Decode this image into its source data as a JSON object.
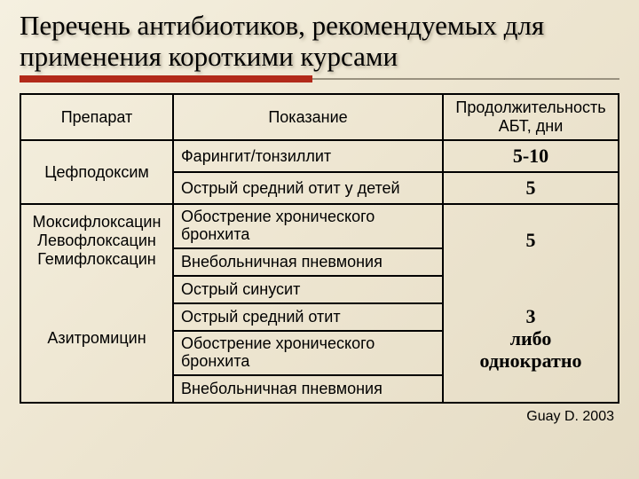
{
  "title": "Перечень антибиотиков, рекомендуемых для применения короткими курсами",
  "columns": {
    "drug": "Препарат",
    "indication": "Показание",
    "duration": "Продолжительность АБТ, дни"
  },
  "rows": {
    "r1_drug": "Цефподоксим",
    "r1a_ind": "Фарингит/тонзиллит",
    "r1a_dur": "5-10",
    "r1b_ind": "Острый средний отит у детей",
    "r1b_dur": "5",
    "r2_drug_a": "Моксифлоксацин",
    "r2_drug_b": "Левофлоксацин",
    "r2_drug_c": "Гемифлоксацин",
    "r2a_ind": "Обострение хронического бронхита",
    "r2b_ind": "Внебольничная пневмония",
    "r2_dur": "5",
    "r3_drug": "Азитромицин",
    "r3a_ind": "Острый синусит",
    "r3b_ind": "Острый средний отит",
    "r3c_ind": "Обострение хронического бронхита",
    "r3d_ind": "Внебольничная пневмония",
    "r3_dur_a": "3",
    "r3_dur_b": "либо",
    "r3_dur_c": "однократно"
  },
  "citation": "Guay D. 2003",
  "colors": {
    "accent": "#b22a1a",
    "border": "#000000",
    "bg_start": "#f5f0e0",
    "bg_end": "#e5dcc5"
  }
}
